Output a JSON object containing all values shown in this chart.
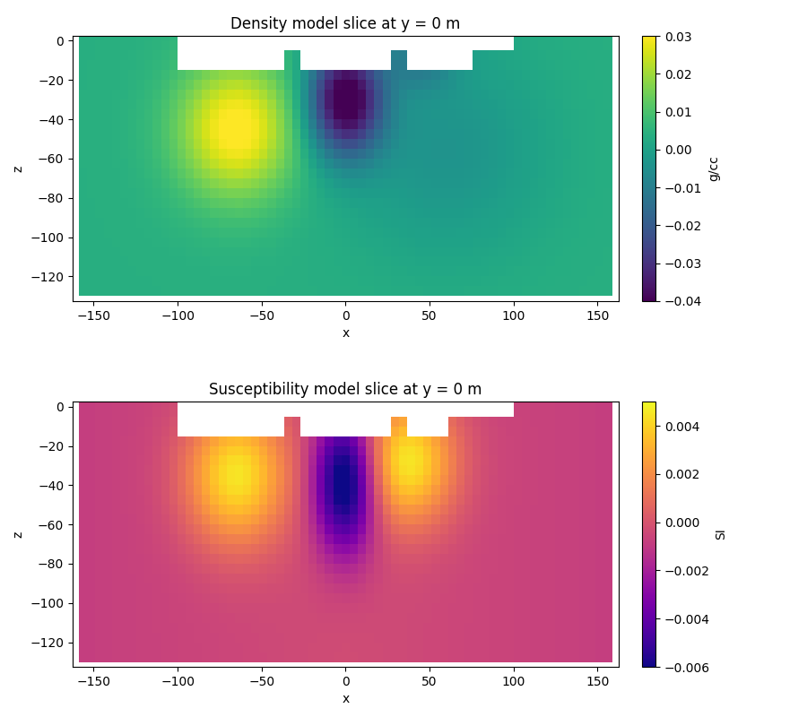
{
  "title1": "Density model slice at y = 0 m",
  "title2": "Susceptibility model slice at y = 0 m",
  "xlabel": "x",
  "ylabel": "z",
  "cbar_label1": "g/cc",
  "cbar_label2": "SI",
  "x_ticks": [
    -150,
    -100,
    -50,
    0,
    50,
    100,
    150
  ],
  "z_ticks": [
    0,
    -20,
    -40,
    -60,
    -80,
    -100,
    -120
  ],
  "cmap1": "viridis",
  "cmap2": "plasma",
  "vmin1": -0.04,
  "vmax1": 0.03,
  "vmin2": -0.006,
  "vmax2": 0.005,
  "xlim": [
    -162.5,
    162.5
  ],
  "zlim": [
    -132.5,
    2.5
  ]
}
